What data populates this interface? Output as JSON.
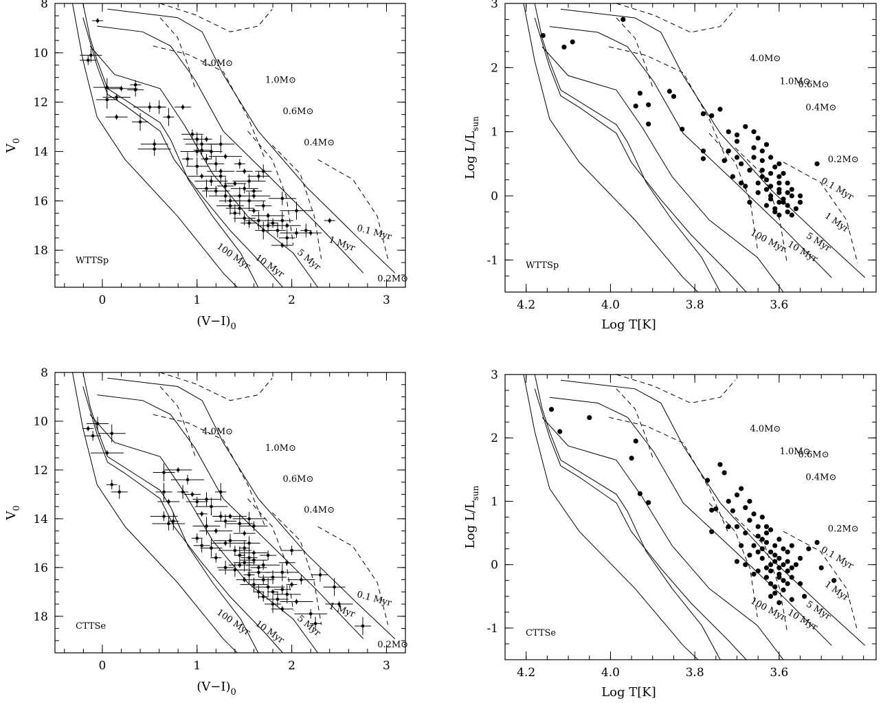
{
  "chart_data": [
    {
      "type": "scatter",
      "panel": "top-left",
      "label": "WTTSp",
      "xlabel_main": "(V−I)",
      "xlabel_sub": "0",
      "ylabel_main": "V",
      "ylabel_sub": "0",
      "xlim": [
        -0.5,
        3.2
      ],
      "ylim": [
        19.5,
        8
      ],
      "xticks": [
        0,
        1,
        2,
        3
      ],
      "yticks": [
        8,
        10,
        12,
        14,
        16,
        18
      ],
      "error_bars": true,
      "mass_labels": [
        "4.0M⊙",
        "1.0M⊙",
        "0.6M⊙",
        "0.4M⊙",
        "0.2M⊙"
      ],
      "age_labels": [
        "100 Myr",
        "10 Myr",
        "5 Myr",
        "1 Myr",
        "0.1 Myr"
      ],
      "points": [
        [
          -0.05,
          8.7
        ],
        [
          -0.15,
          10.3
        ],
        [
          -0.12,
          10.1
        ],
        [
          0.05,
          11.4
        ],
        [
          0.2,
          11.45
        ],
        [
          0.35,
          11.3
        ],
        [
          0.35,
          11.5
        ],
        [
          0.05,
          11.9
        ],
        [
          0.15,
          11.8
        ],
        [
          0.5,
          12.2
        ],
        [
          0.6,
          12.2
        ],
        [
          0.4,
          12.8
        ],
        [
          0.15,
          12.6
        ],
        [
          0.55,
          13.7
        ],
        [
          0.55,
          13.9
        ],
        [
          0.7,
          12.6
        ],
        [
          0.85,
          12.2
        ],
        [
          0.95,
          13.3
        ],
        [
          1.0,
          13.5
        ],
        [
          1.05,
          13.7
        ],
        [
          1.1,
          13.5
        ],
        [
          1.05,
          13.95
        ],
        [
          1.15,
          14.0
        ],
        [
          1.25,
          13.7
        ],
        [
          1.3,
          14.2
        ],
        [
          1.1,
          14.3
        ],
        [
          1.2,
          14.5
        ],
        [
          1.0,
          14.6
        ],
        [
          1.05,
          15.0
        ],
        [
          1.15,
          15.2
        ],
        [
          1.25,
          15.0
        ],
        [
          1.3,
          15.4
        ],
        [
          1.4,
          15.3
        ],
        [
          1.5,
          15.5
        ],
        [
          1.55,
          15.2
        ],
        [
          1.45,
          15.8
        ],
        [
          1.6,
          15.6
        ],
        [
          1.35,
          16.0
        ],
        [
          1.45,
          16.3
        ],
        [
          1.55,
          16.0
        ],
        [
          1.6,
          16.4
        ],
        [
          1.7,
          16.2
        ],
        [
          1.5,
          16.7
        ],
        [
          1.65,
          16.8
        ],
        [
          1.75,
          16.6
        ],
        [
          1.8,
          16.9
        ],
        [
          1.85,
          17.2
        ],
        [
          1.9,
          16.8
        ],
        [
          1.95,
          17.0
        ],
        [
          2.05,
          17.3
        ],
        [
          2.15,
          17.2
        ],
        [
          1.7,
          17.2
        ],
        [
          1.9,
          17.8
        ],
        [
          1.2,
          15.6
        ],
        [
          1.3,
          15.8
        ],
        [
          1.4,
          16.5
        ],
        [
          1.5,
          14.8
        ],
        [
          1.65,
          15.0
        ],
        [
          1.9,
          15.9
        ],
        [
          2.05,
          16.4
        ],
        [
          2.4,
          16.8
        ],
        [
          1.55,
          16.9
        ],
        [
          1.75,
          17.0
        ],
        [
          1.35,
          16.2
        ],
        [
          1.6,
          15.8
        ],
        [
          1.45,
          14.5
        ],
        [
          1.7,
          14.8
        ],
        [
          1.1,
          15.5
        ],
        [
          1.25,
          14.8
        ],
        [
          1.0,
          14.0
        ],
        [
          0.9,
          14.3
        ],
        [
          1.95,
          17.5
        ],
        [
          2.2,
          17.3
        ]
      ]
    },
    {
      "type": "scatter",
      "panel": "top-right",
      "label": "WTTSp",
      "xlabel": "Log T[K]",
      "ylabel_main": "Log L/L",
      "ylabel_sub": "sun",
      "xlim": [
        4.25,
        3.37
      ],
      "ylim": [
        -1.5,
        3
      ],
      "xticks": [
        4.2,
        4.0,
        3.8,
        3.6
      ],
      "yticks": [
        -1,
        0,
        1,
        2,
        3
      ],
      "mass_labels": [
        "4.0M⊙",
        "1.0M⊙",
        "0.6M⊙",
        "0.4M⊙",
        "0.2M⊙"
      ],
      "age_labels": [
        "100 Myr",
        "10 Myr",
        "5 Myr",
        "1 Myr",
        "0.1 Myr"
      ],
      "points": [
        [
          4.16,
          2.5
        ],
        [
          4.11,
          2.32
        ],
        [
          4.09,
          2.4
        ],
        [
          3.97,
          2.75
        ],
        [
          3.93,
          1.6
        ],
        [
          3.91,
          1.42
        ],
        [
          3.94,
          1.4
        ],
        [
          3.91,
          1.12
        ],
        [
          3.86,
          1.63
        ],
        [
          3.85,
          1.55
        ],
        [
          3.83,
          1.04
        ],
        [
          3.78,
          1.28
        ],
        [
          3.76,
          1.25
        ],
        [
          3.78,
          0.7
        ],
        [
          3.78,
          0.58
        ],
        [
          3.74,
          1.35
        ],
        [
          3.72,
          1.0
        ],
        [
          3.7,
          0.95
        ],
        [
          3.68,
          1.08
        ],
        [
          3.66,
          1.0
        ],
        [
          3.65,
          0.9
        ],
        [
          3.63,
          0.8
        ],
        [
          3.62,
          0.6
        ],
        [
          3.64,
          0.4
        ],
        [
          3.6,
          0.3
        ],
        [
          3.58,
          0.2
        ],
        [
          3.57,
          0.0
        ],
        [
          3.59,
          -0.1
        ],
        [
          3.61,
          -0.2
        ],
        [
          3.63,
          0.1
        ],
        [
          3.67,
          0.4
        ],
        [
          3.69,
          0.2
        ],
        [
          3.71,
          0.3
        ],
        [
          3.7,
          0.6
        ],
        [
          3.72,
          0.7
        ],
        [
          3.66,
          0.6
        ],
        [
          3.64,
          0.3
        ],
        [
          3.62,
          -0.05
        ],
        [
          3.6,
          0.1
        ],
        [
          3.58,
          -0.15
        ],
        [
          3.56,
          -0.2
        ],
        [
          3.6,
          -0.3
        ],
        [
          3.62,
          0.0
        ],
        [
          3.65,
          0.2
        ],
        [
          3.67,
          -0.1
        ],
        [
          3.69,
          0.5
        ],
        [
          3.64,
          0.55
        ],
        [
          3.63,
          0.25
        ],
        [
          3.61,
          0.45
        ],
        [
          3.59,
          0.35
        ],
        [
          3.57,
          -0.3
        ],
        [
          3.55,
          0.0
        ],
        [
          3.55,
          -0.1
        ],
        [
          3.62,
          0.15
        ],
        [
          3.6,
          -0.1
        ],
        [
          3.65,
          0.05
        ],
        [
          3.66,
          0.75
        ],
        [
          3.7,
          0.85
        ],
        [
          3.73,
          0.55
        ],
        [
          3.68,
          0.15
        ],
        [
          3.6,
          0.5
        ],
        [
          3.58,
          0.05
        ],
        [
          3.51,
          0.5
        ],
        [
          3.63,
          -0.15
        ],
        [
          3.61,
          -0.25
        ],
        [
          3.59,
          -0.05
        ],
        [
          3.64,
          0.7
        ],
        [
          3.62,
          0.35
        ],
        [
          3.6,
          0.2
        ],
        [
          3.57,
          0.1
        ],
        [
          3.6,
          0.05
        ],
        [
          3.58,
          -0.25
        ]
      ]
    },
    {
      "type": "scatter",
      "panel": "bottom-left",
      "label": "CTTSe",
      "xlabel_main": "(V−I)",
      "xlabel_sub": "0",
      "ylabel_main": "V",
      "ylabel_sub": "0",
      "xlim": [
        -0.5,
        3.2
      ],
      "ylim": [
        19.5,
        8
      ],
      "xticks": [
        0,
        1,
        2,
        3
      ],
      "yticks": [
        8,
        10,
        12,
        14,
        16,
        18
      ],
      "error_bars": true,
      "mass_labels": [
        "4.0M⊙",
        "1.0M⊙",
        "0.6M⊙",
        "0.4M⊙",
        "0.2M⊙"
      ],
      "age_labels": [
        "100 Myr",
        "10 Myr",
        "5 Myr",
        "1 Myr",
        "0.1 Myr"
      ],
      "points": [
        [
          -0.15,
          10.3
        ],
        [
          -0.1,
          10.6
        ],
        [
          -0.05,
          10.1
        ],
        [
          0.1,
          10.5
        ],
        [
          0.05,
          11.3
        ],
        [
          0.1,
          12.6
        ],
        [
          0.18,
          12.9
        ],
        [
          0.65,
          12.1
        ],
        [
          0.8,
          12.0
        ],
        [
          0.9,
          12.4
        ],
        [
          0.85,
          12.9
        ],
        [
          0.65,
          12.9
        ],
        [
          0.7,
          13.3
        ],
        [
          0.65,
          13.9
        ],
        [
          0.7,
          14.2
        ],
        [
          0.75,
          14.1
        ],
        [
          0.95,
          13.0
        ],
        [
          1.0,
          13.3
        ],
        [
          1.1,
          13.2
        ],
        [
          1.15,
          13.5
        ],
        [
          1.05,
          13.8
        ],
        [
          1.25,
          13.9
        ],
        [
          1.3,
          14.1
        ],
        [
          1.1,
          14.3
        ],
        [
          1.2,
          14.5
        ],
        [
          1.0,
          14.8
        ],
        [
          1.05,
          15.1
        ],
        [
          1.15,
          15.2
        ],
        [
          1.3,
          15.0
        ],
        [
          1.4,
          15.3
        ],
        [
          1.5,
          15.2
        ],
        [
          1.55,
          15.6
        ],
        [
          1.45,
          15.9
        ],
        [
          1.6,
          15.7
        ],
        [
          1.4,
          16.1
        ],
        [
          1.55,
          16.3
        ],
        [
          1.65,
          16.0
        ],
        [
          1.7,
          16.5
        ],
        [
          1.6,
          16.7
        ],
        [
          1.75,
          16.8
        ],
        [
          1.8,
          17.0
        ],
        [
          1.9,
          16.9
        ],
        [
          1.85,
          17.3
        ],
        [
          1.95,
          17.1
        ],
        [
          2.05,
          17.4
        ],
        [
          1.7,
          17.2
        ],
        [
          2.3,
          16.3
        ],
        [
          2.45,
          16.8
        ],
        [
          2.5,
          17.5
        ],
        [
          2.2,
          17.9
        ],
        [
          2.25,
          18.3
        ],
        [
          2.75,
          18.4
        ],
        [
          1.5,
          14.6
        ],
        [
          1.6,
          14.3
        ],
        [
          1.35,
          14.9
        ],
        [
          1.45,
          15.5
        ],
        [
          1.5,
          16.5
        ],
        [
          1.65,
          16.2
        ],
        [
          1.8,
          16.4
        ],
        [
          1.9,
          16.2
        ],
        [
          2.0,
          16.7
        ],
        [
          1.75,
          15.5
        ],
        [
          1.55,
          15.0
        ],
        [
          1.45,
          14.2
        ],
        [
          1.35,
          13.9
        ],
        [
          1.2,
          15.6
        ],
        [
          1.3,
          16.0
        ],
        [
          1.5,
          15.8
        ],
        [
          1.6,
          15.4
        ],
        [
          1.7,
          15.9
        ],
        [
          1.65,
          17.0
        ],
        [
          1.8,
          17.5
        ],
        [
          1.9,
          17.7
        ],
        [
          2.1,
          16.5
        ],
        [
          1.55,
          14.0
        ],
        [
          1.25,
          12.9
        ],
        [
          1.95,
          15.8
        ],
        [
          2.0,
          15.3
        ]
      ]
    },
    {
      "type": "scatter",
      "panel": "bottom-right",
      "label": "CTTSe",
      "xlabel": "Log T[K]",
      "ylabel_main": "Log L/L",
      "ylabel_sub": "sun",
      "xlim": [
        4.25,
        3.37
      ],
      "ylim": [
        -1.5,
        3
      ],
      "xticks": [
        4.2,
        4.0,
        3.8,
        3.6
      ],
      "yticks": [
        -1,
        0,
        1,
        2,
        3
      ],
      "mass_labels": [
        "4.0M⊙",
        "1.0M⊙",
        "0.6M⊙",
        "0.4M⊙",
        "0.2M⊙"
      ],
      "age_labels": [
        "100 Myr",
        "10 Myr",
        "5 Myr",
        "1 Myr",
        "0.1 Myr"
      ],
      "points": [
        [
          4.14,
          2.45
        ],
        [
          4.12,
          2.1
        ],
        [
          4.05,
          2.32
        ],
        [
          3.94,
          1.95
        ],
        [
          3.95,
          1.68
        ],
        [
          3.93,
          1.12
        ],
        [
          3.91,
          0.98
        ],
        [
          3.77,
          1.33
        ],
        [
          3.75,
          0.88
        ],
        [
          3.76,
          0.86
        ],
        [
          3.74,
          1.58
        ],
        [
          3.73,
          1.45
        ],
        [
          3.72,
          1.0
        ],
        [
          3.71,
          0.85
        ],
        [
          3.72,
          0.6
        ],
        [
          3.7,
          1.1
        ],
        [
          3.69,
          1.2
        ],
        [
          3.68,
          0.9
        ],
        [
          3.67,
          1.0
        ],
        [
          3.66,
          0.8
        ],
        [
          3.65,
          0.6
        ],
        [
          3.64,
          0.4
        ],
        [
          3.63,
          0.5
        ],
        [
          3.62,
          0.2
        ],
        [
          3.61,
          0.3
        ],
        [
          3.6,
          0.1
        ],
        [
          3.59,
          0.0
        ],
        [
          3.58,
          -0.1
        ],
        [
          3.6,
          -0.2
        ],
        [
          3.62,
          -0.3
        ],
        [
          3.64,
          0.1
        ],
        [
          3.66,
          0.3
        ],
        [
          3.68,
          0.5
        ],
        [
          3.7,
          0.6
        ],
        [
          3.69,
          0.3
        ],
        [
          3.67,
          0.15
        ],
        [
          3.65,
          -0.1
        ],
        [
          3.63,
          -0.2
        ],
        [
          3.61,
          -0.35
        ],
        [
          3.59,
          -0.4
        ],
        [
          3.57,
          -0.2
        ],
        [
          3.56,
          0.0
        ],
        [
          3.55,
          -0.3
        ],
        [
          3.6,
          0.4
        ],
        [
          3.62,
          0.55
        ],
        [
          3.64,
          0.75
        ],
        [
          3.63,
          -0.05
        ],
        [
          3.61,
          0.05
        ],
        [
          3.58,
          0.2
        ],
        [
          3.57,
          0.3
        ],
        [
          3.55,
          0.1
        ],
        [
          3.53,
          0.25
        ],
        [
          3.51,
          0.35
        ],
        [
          3.5,
          -0.05
        ],
        [
          3.47,
          -0.25
        ],
        [
          3.54,
          -0.5
        ],
        [
          3.57,
          -0.55
        ],
        [
          3.6,
          -0.6
        ],
        [
          3.62,
          -0.5
        ],
        [
          3.65,
          0.45
        ],
        [
          3.66,
          -0.15
        ],
        [
          3.68,
          0.0
        ],
        [
          3.7,
          0.05
        ],
        [
          3.64,
          0.25
        ],
        [
          3.62,
          0.0
        ],
        [
          3.6,
          -0.05
        ],
        [
          3.59,
          0.25
        ],
        [
          3.58,
          -0.3
        ],
        [
          3.61,
          0.15
        ],
        [
          3.63,
          0.35
        ],
        [
          3.76,
          0.52
        ],
        [
          3.67,
          0.7
        ],
        [
          3.6,
          -0.15
        ],
        [
          3.62,
          -0.1
        ],
        [
          3.58,
          0.05
        ],
        [
          3.65,
          0.2
        ],
        [
          3.63,
          0.6
        ],
        [
          3.61,
          -0.45
        ],
        [
          3.59,
          -0.25
        ],
        [
          3.57,
          -0.05
        ]
      ]
    }
  ]
}
